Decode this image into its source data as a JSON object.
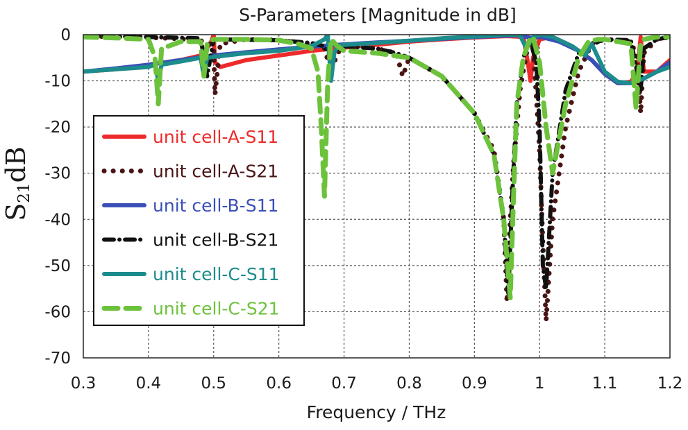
{
  "chart_data": {
    "type": "line",
    "title": "S-Parameters [Magnitude in dB]",
    "xlabel": "Frequency / THz",
    "ylabel_main": "S",
    "ylabel_sub": "21",
    "ylabel_tail": "dB",
    "xlim": [
      0.3,
      1.2
    ],
    "ylim": [
      -70,
      0
    ],
    "xticks": [
      0.3,
      0.4,
      0.5,
      0.6,
      0.7,
      0.8,
      0.9,
      1.0,
      1.1,
      1.2
    ],
    "xtick_labels": [
      "0.3",
      "0.4",
      "0.5",
      "0.6",
      "0.7",
      "0.8",
      "0.9",
      "1",
      "1.1",
      "1.2"
    ],
    "yticks": [
      0,
      -10,
      -20,
      -30,
      -40,
      -50,
      -60,
      -70
    ],
    "ytick_labels": [
      "0",
      "-10",
      "-20",
      "-30",
      "-40",
      "-50",
      "-60",
      "-70"
    ],
    "grid": true,
    "legend_position": "left-middle",
    "series": [
      {
        "name": "unit cell-A-S11",
        "color": "#ee2a2a",
        "style": "solid",
        "x": [
          0.3,
          0.35,
          0.4,
          0.45,
          0.48,
          0.495,
          0.5,
          0.502,
          0.51,
          0.55,
          0.6,
          0.65,
          0.7,
          0.75,
          0.8,
          0.85,
          0.9,
          0.95,
          0.975,
          0.982,
          0.986,
          0.99,
          1.0,
          1.02,
          1.05,
          1.08,
          1.1,
          1.12,
          1.14,
          1.15,
          1.155,
          1.16,
          1.18,
          1.2
        ],
        "y": [
          -8,
          -7.5,
          -6.5,
          -5.5,
          -4.5,
          -2,
          0,
          -6,
          -7,
          -5.5,
          -4.5,
          -3.5,
          -2.8,
          -2.2,
          -1.5,
          -1.0,
          -0.6,
          -0.3,
          -0.5,
          -6,
          -10,
          -5,
          -1,
          -0.5,
          -2.5,
          -5.5,
          -8.5,
          -10.5,
          -10.2,
          -8,
          -0.5,
          -8,
          -8,
          -5.5
        ]
      },
      {
        "name": "unit cell-A-S21",
        "color": "#4a1414",
        "style": "dotted",
        "x": [
          0.3,
          0.4,
          0.45,
          0.49,
          0.5,
          0.502,
          0.51,
          0.55,
          0.6,
          0.65,
          0.67,
          0.68,
          0.69,
          0.7,
          0.75,
          0.78,
          0.79,
          0.8,
          0.85,
          0.9,
          0.93,
          0.945,
          0.95,
          0.955,
          0.96,
          0.97,
          0.98,
          0.99,
          1.0,
          1.005,
          1.01,
          1.02,
          1.04,
          1.06,
          1.08,
          1.1,
          1.14,
          1.15,
          1.155,
          1.16,
          1.18,
          1.2
        ],
        "y": [
          -0.3,
          -0.6,
          -0.9,
          -1.5,
          -3,
          -13,
          -2,
          -1,
          -1.2,
          -2,
          -3,
          -8,
          -4,
          -2.5,
          -3,
          -4,
          -9,
          -5,
          -9,
          -17,
          -25,
          -40,
          -58,
          -40,
          -28,
          -12,
          -4,
          -2,
          -25,
          -45,
          -62,
          -40,
          -20,
          -8,
          -2,
          -1,
          -1.5,
          -5,
          -17,
          -4,
          -1,
          -0.5
        ]
      },
      {
        "name": "unit cell-B-S11",
        "color": "#3a4fb8",
        "style": "solid",
        "x": [
          0.3,
          0.35,
          0.4,
          0.45,
          0.5,
          0.55,
          0.6,
          0.65,
          0.7,
          0.75,
          0.8,
          0.85,
          0.9,
          0.95,
          0.97,
          0.98,
          0.99,
          1.0,
          1.03,
          1.06,
          1.08,
          1.1,
          1.12,
          1.14,
          1.16,
          1.18,
          1.2
        ],
        "y": [
          -8,
          -7.3,
          -6.5,
          -5.5,
          -4.5,
          -3.8,
          -3.2,
          -2.6,
          -2.1,
          -1.7,
          -1.3,
          -0.9,
          -0.5,
          -0.2,
          -0.2,
          -0.5,
          -0.8,
          -0.4,
          -1.5,
          -3.5,
          -5.5,
          -8.5,
          -10.5,
          -10.5,
          -9.5,
          -8,
          -6
        ]
      },
      {
        "name": "unit cell-B-S21",
        "color": "#111111",
        "style": "dashdot",
        "x": [
          0.3,
          0.4,
          0.48,
          0.49,
          0.5,
          0.55,
          0.6,
          0.65,
          0.67,
          0.68,
          0.69,
          0.7,
          0.75,
          0.78,
          0.8,
          0.85,
          0.9,
          0.93,
          0.945,
          0.952,
          0.958,
          0.965,
          0.975,
          0.985,
          0.995,
          1.0,
          1.005,
          1.01,
          1.02,
          1.04,
          1.06,
          1.075,
          1.09,
          1.1,
          1.14,
          1.155,
          1.16,
          1.18,
          1.2
        ],
        "y": [
          -0.3,
          -0.5,
          -0.8,
          -9,
          -1,
          -1.1,
          -1.2,
          -1.8,
          -2.5,
          -5,
          -3,
          -2.5,
          -3,
          -4,
          -5,
          -9,
          -17,
          -26,
          -40,
          -56,
          -35,
          -15,
          -5,
          -1,
          -6,
          -20,
          -50,
          -55,
          -30,
          -12,
          -4,
          -3,
          -1.5,
          -1,
          -1.2,
          -12,
          -3,
          -1,
          -0.5
        ]
      },
      {
        "name": "unit cell-C-S11",
        "color": "#1d8c8c",
        "style": "solid",
        "x": [
          0.3,
          0.35,
          0.4,
          0.41,
          0.415,
          0.42,
          0.45,
          0.48,
          0.485,
          0.49,
          0.5,
          0.55,
          0.6,
          0.65,
          0.67,
          0.675,
          0.68,
          0.685,
          0.69,
          0.7,
          0.75,
          0.8,
          0.85,
          0.9,
          0.95,
          0.97,
          0.98,
          0.99,
          1.0,
          1.02,
          1.05,
          1.07,
          1.08,
          1.1,
          1.12,
          1.14,
          1.16,
          1.18,
          1.2
        ],
        "y": [
          -8,
          -7.5,
          -7,
          -6.5,
          -10,
          -6.5,
          -5.8,
          -5,
          -9,
          -5,
          -4.8,
          -4,
          -3.5,
          -2.5,
          -1,
          0,
          -10,
          -4,
          -2.5,
          -2.2,
          -1.8,
          -1.3,
          -0.8,
          -0.4,
          0,
          -0.2,
          -3,
          -0.5,
          0,
          -0.5,
          -2.5,
          -4.5,
          -2,
          -8,
          -10.2,
          -10.5,
          -9.5,
          -8,
          -7
        ]
      },
      {
        "name": "unit cell-C-S21",
        "color": "#6dc23c",
        "style": "dashed",
        "x": [
          0.3,
          0.35,
          0.4,
          0.41,
          0.415,
          0.42,
          0.45,
          0.48,
          0.485,
          0.49,
          0.5,
          0.55,
          0.6,
          0.63,
          0.65,
          0.66,
          0.665,
          0.67,
          0.675,
          0.68,
          0.69,
          0.7,
          0.75,
          0.8,
          0.85,
          0.9,
          0.93,
          0.945,
          0.955,
          0.96,
          0.965,
          0.975,
          0.985,
          0.99,
          1.0,
          1.01,
          1.02,
          1.04,
          1.06,
          1.075,
          1.09,
          1.1,
          1.14,
          1.148,
          1.155,
          1.16,
          1.18,
          1.2
        ],
        "y": [
          -0.5,
          -0.7,
          -1,
          -5,
          -15,
          -3,
          -1.5,
          -1.5,
          -9,
          -2,
          -1,
          -1,
          -1.2,
          -2,
          -3,
          -8,
          -20,
          -35,
          -10,
          -1,
          -2.5,
          -3.5,
          -4,
          -5,
          -9,
          -17,
          -26,
          -40,
          -57,
          -35,
          -15,
          -5,
          -1,
          -0.5,
          -6,
          -20,
          -30,
          -15,
          -5,
          -1.5,
          -1,
          -1,
          -2,
          -16,
          -2,
          -1,
          -0.5,
          -0.5
        ]
      }
    ]
  }
}
